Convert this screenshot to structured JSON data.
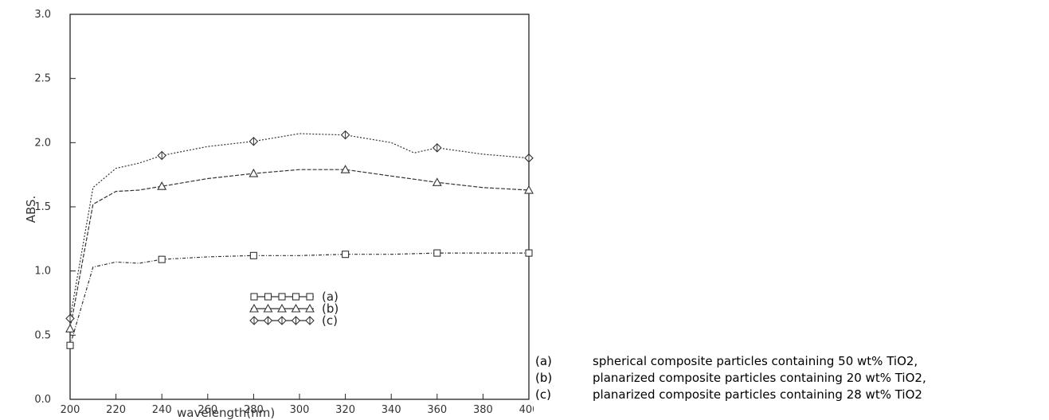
{
  "chart_data": {
    "type": "line",
    "xlabel": "wavelength(nm)",
    "ylabel": "ABS.",
    "xlim": [
      200,
      400
    ],
    "ylim": [
      0,
      3.0
    ],
    "xticks": [
      "200",
      "220",
      "240",
      "260",
      "280",
      "300",
      "320",
      "340",
      "360",
      "380",
      "400"
    ],
    "yticks": [
      "0.0",
      "0.5",
      "1.0",
      "1.5",
      "2.0",
      "2.5",
      "3.0"
    ],
    "grid": false,
    "legend_position": "inside-bottom-center",
    "series": [
      {
        "name": "(a)",
        "marker": "square",
        "color": "#333333",
        "x": [
          200,
          210,
          220,
          230,
          240,
          260,
          280,
          300,
          320,
          340,
          360,
          380,
          400
        ],
        "values": [
          0.42,
          1.03,
          1.07,
          1.06,
          1.09,
          1.11,
          1.12,
          1.12,
          1.13,
          1.13,
          1.14,
          1.14,
          1.14
        ]
      },
      {
        "name": "(b)",
        "marker": "triangle",
        "color": "#333333",
        "x": [
          200,
          210,
          220,
          230,
          240,
          260,
          280,
          300,
          320,
          340,
          360,
          380,
          400
        ],
        "values": [
          0.55,
          1.52,
          1.62,
          1.63,
          1.66,
          1.72,
          1.76,
          1.79,
          1.79,
          1.74,
          1.69,
          1.65,
          1.63
        ]
      },
      {
        "name": "(c)",
        "marker": "diamond",
        "color": "#333333",
        "x": [
          200,
          210,
          220,
          230,
          240,
          260,
          280,
          300,
          320,
          340,
          350,
          360,
          380,
          400
        ],
        "values": [
          0.63,
          1.65,
          1.8,
          1.84,
          1.9,
          1.97,
          2.01,
          2.07,
          2.06,
          2.0,
          1.92,
          1.96,
          1.91,
          1.88
        ]
      }
    ],
    "marker_x": [
      200,
      240,
      280,
      320,
      360,
      400
    ]
  },
  "description": {
    "items": [
      {
        "key": "(a)",
        "text": "spherical composite particles containing 50 wt% TiO2,"
      },
      {
        "key": "(b)",
        "text": "planarized composite particles containing 20 wt% TiO2,"
      },
      {
        "key": "(c)",
        "text": "planarized composite particles containing 28 wt% TiO2"
      }
    ]
  }
}
